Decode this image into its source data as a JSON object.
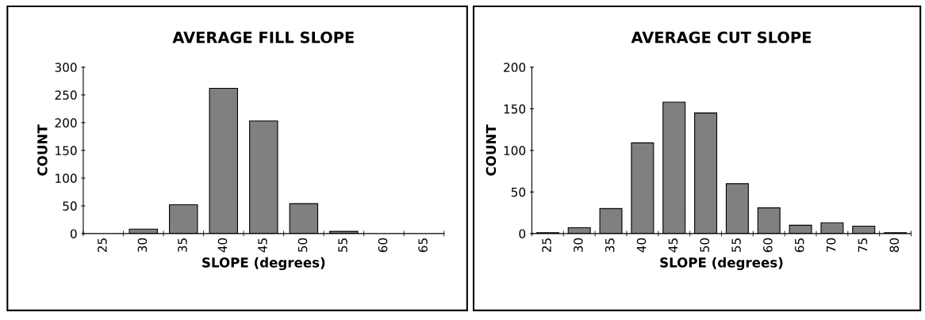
{
  "chart_data": [
    {
      "type": "bar",
      "title": "AVERAGE FILL SLOPE",
      "xlabel": "SLOPE (degrees)",
      "ylabel": "COUNT",
      "categories": [
        "25",
        "30",
        "35",
        "40",
        "45",
        "50",
        "55",
        "60",
        "65"
      ],
      "values": [
        null,
        8,
        52,
        262,
        203,
        54,
        4,
        null,
        0
      ],
      "color": "#808080",
      "ylim": [
        0,
        300
      ],
      "yticks": [
        0,
        50,
        100,
        150,
        200,
        250,
        300
      ],
      "grid": false,
      "legend": false
    },
    {
      "type": "bar",
      "title": "AVERAGE CUT SLOPE",
      "xlabel": "SLOPE (degrees)",
      "ylabel": "COUNT",
      "categories": [
        "25",
        "30",
        "35",
        "40",
        "45",
        "50",
        "55",
        "60",
        "65",
        "70",
        "75",
        "80"
      ],
      "values": [
        1,
        7,
        30,
        109,
        158,
        145,
        60,
        31,
        10,
        13,
        9,
        1
      ],
      "color": "#808080",
      "ylim": [
        0,
        200
      ],
      "yticks": [
        0,
        50,
        100,
        150,
        200
      ],
      "grid": false,
      "legend": false
    }
  ]
}
